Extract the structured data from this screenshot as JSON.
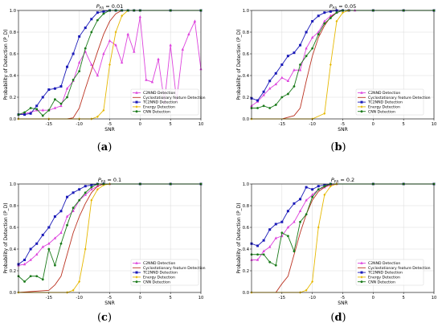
{
  "chart_data": [
    {
      "type": "line",
      "title": "P_FA = 0.01",
      "xlabel": "SNR",
      "ylabel": "Probability of Detection (P_D)",
      "xlim": [
        -20,
        10
      ],
      "ylim": [
        0,
        1
      ],
      "xticks": [
        "-15",
        "-10",
        "-5",
        "0",
        "5",
        "10"
      ],
      "yticks": [
        "0.0",
        "0.2",
        "0.4",
        "0.6",
        "0.8",
        "1.0"
      ],
      "grid": true,
      "legend": "lower-left",
      "caption": "a",
      "series": [
        {
          "name": "C2NND Detection",
          "color": "#dd44dd",
          "marker": "triangle",
          "x": [
            -20,
            -19,
            -18,
            -17,
            -16,
            -15,
            -14,
            -13,
            -12,
            -11,
            -10,
            -9,
            -8,
            -7,
            -6,
            -5,
            -4,
            -3,
            -2,
            -1,
            0,
            1,
            2,
            3,
            4,
            5,
            6,
            7,
            8,
            9,
            10
          ],
          "y": [
            0.04,
            0.05,
            0.06,
            0.08,
            0.08,
            0.08,
            0.1,
            0.12,
            0.28,
            0.35,
            0.52,
            0.62,
            0.5,
            0.4,
            0.6,
            0.72,
            0.68,
            0.52,
            0.78,
            0.62,
            0.94,
            0.36,
            0.34,
            0.55,
            0.15,
            0.68,
            0.17,
            0.64,
            0.78,
            0.9,
            0.46
          ]
        },
        {
          "name": "Cyclostationary feature Detection",
          "color": "#bb3322",
          "marker": "none",
          "x": [
            -20,
            -15,
            -12,
            -11,
            -10,
            -9,
            -8,
            -7,
            -6,
            -5,
            -4,
            -3,
            -2,
            -1,
            0,
            5,
            10
          ],
          "y": [
            0,
            0,
            0,
            0.01,
            0.1,
            0.28,
            0.45,
            0.62,
            0.78,
            0.9,
            0.97,
            1,
            1,
            1,
            1,
            1,
            1
          ]
        },
        {
          "name": "TC2NND Detection",
          "color": "#1a1ab8",
          "marker": "square",
          "x": [
            -20,
            -19,
            -18,
            -17,
            -16,
            -15,
            -14,
            -13,
            -12,
            -11,
            -10,
            -9,
            -8,
            -7,
            -6,
            -5,
            -4,
            -3,
            -2,
            -1,
            0,
            5,
            10
          ],
          "y": [
            0.04,
            0.04,
            0.05,
            0.12,
            0.2,
            0.27,
            0.28,
            0.3,
            0.48,
            0.6,
            0.76,
            0.84,
            0.92,
            0.98,
            0.99,
            1,
            1,
            1,
            1,
            1,
            1,
            1,
            1
          ]
        },
        {
          "name": "Energy Detection",
          "color": "#e6b800",
          "marker": "diamond",
          "x": [
            -20,
            -15,
            -10,
            -8,
            -7,
            -6,
            -5,
            -4,
            -3,
            -2,
            -1,
            0,
            5,
            10
          ],
          "y": [
            0,
            0,
            0,
            0,
            0.02,
            0.08,
            0.5,
            0.8,
            0.95,
            1,
            1,
            1,
            1,
            1
          ]
        },
        {
          "name": "CNN Detection",
          "color": "#1a7a1a",
          "marker": "circle",
          "x": [
            -20,
            -19,
            -18,
            -17,
            -16,
            -15,
            -14,
            -13,
            -12,
            -11,
            -10,
            -9,
            -8,
            -7,
            -6,
            -5,
            -4,
            -3,
            -2,
            -1,
            0,
            5,
            10
          ],
          "y": [
            0.04,
            0.06,
            0.1,
            0.09,
            0.03,
            0.08,
            0.18,
            0.14,
            0.2,
            0.36,
            0.44,
            0.65,
            0.8,
            0.91,
            0.97,
            1,
            1,
            1,
            1,
            1,
            1,
            1,
            1
          ]
        }
      ]
    },
    {
      "type": "line",
      "title": "P_FA = 0.05",
      "xlabel": "SNR",
      "ylabel": "Probability of Detection (P_D)",
      "xlim": [
        -20,
        10
      ],
      "ylim": [
        0,
        1
      ],
      "xticks": [
        "-15",
        "-10",
        "-5",
        "0",
        "5",
        "10"
      ],
      "yticks": [
        "0.0",
        "0.2",
        "0.4",
        "0.6",
        "0.8",
        "1.0"
      ],
      "grid": true,
      "legend": "lower-right",
      "caption": "b",
      "series": [
        {
          "name": "C2NND Detection",
          "color": "#dd44dd",
          "marker": "triangle",
          "x": [
            -20,
            -19,
            -18,
            -17,
            -16,
            -15,
            -14,
            -13,
            -12,
            -11,
            -10,
            -9,
            -8,
            -7,
            -6,
            -5,
            -4,
            -3,
            0,
            5,
            10
          ],
          "y": [
            0.12,
            0.16,
            0.22,
            0.28,
            0.32,
            0.38,
            0.35,
            0.45,
            0.45,
            0.65,
            0.75,
            0.8,
            0.9,
            0.95,
            0.98,
            1,
            1,
            1,
            1,
            1,
            1
          ]
        },
        {
          "name": "Cyclostationary feature Detection",
          "color": "#bb3322",
          "marker": "none",
          "x": [
            -20,
            -15,
            -13,
            -12,
            -11,
            -10,
            -9,
            -8,
            -7,
            -6,
            -5,
            -4,
            0,
            5,
            10
          ],
          "y": [
            0,
            0,
            0.03,
            0.1,
            0.35,
            0.58,
            0.75,
            0.86,
            0.94,
            0.98,
            1,
            1,
            1,
            1,
            1
          ]
        },
        {
          "name": "TC2NND Detection",
          "color": "#1a1ab8",
          "marker": "square",
          "x": [
            -20,
            -19,
            -18,
            -17,
            -16,
            -15,
            -14,
            -13,
            -12,
            -11,
            -10,
            -9,
            -8,
            -7,
            -6,
            -5,
            -4,
            0,
            5,
            10
          ],
          "y": [
            0.19,
            0.17,
            0.25,
            0.35,
            0.42,
            0.5,
            0.58,
            0.61,
            0.68,
            0.8,
            0.9,
            0.95,
            0.98,
            0.99,
            1,
            1,
            1,
            1,
            1,
            1
          ]
        },
        {
          "name": "Energy Detection",
          "color": "#e6b800",
          "marker": "diamond",
          "x": [
            -20,
            -10,
            -8,
            -7,
            -6,
            -5,
            -4,
            0,
            5,
            10
          ],
          "y": [
            0,
            0,
            0.05,
            0.5,
            0.9,
            0.98,
            1,
            1,
            1,
            1
          ]
        },
        {
          "name": "CNN Detection",
          "color": "#1a7a1a",
          "marker": "circle",
          "x": [
            -20,
            -19,
            -18,
            -17,
            -16,
            -15,
            -14,
            -13,
            -12,
            -11,
            -10,
            -9,
            -8,
            -7,
            -6,
            -5,
            0,
            5,
            10
          ],
          "y": [
            0.1,
            0.1,
            0.12,
            0.1,
            0.13,
            0.2,
            0.23,
            0.3,
            0.5,
            0.58,
            0.65,
            0.78,
            0.88,
            0.93,
            0.98,
            1,
            1,
            1,
            1
          ]
        }
      ]
    },
    {
      "type": "line",
      "title": "P_FA = 0.1",
      "xlabel": "SNR",
      "ylabel": "Probability of Detection (P_D)",
      "xlim": [
        -20,
        10
      ],
      "ylim": [
        0,
        1
      ],
      "xticks": [
        "-15",
        "-10",
        "-5",
        "0",
        "5",
        "10"
      ],
      "yticks": [
        "0.0",
        "0.2",
        "0.4",
        "0.6",
        "0.8",
        "1.0"
      ],
      "grid": true,
      "legend": "lower-right",
      "caption": "c",
      "series": [
        {
          "name": "C2NND Detection",
          "color": "#dd44dd",
          "marker": "triangle",
          "x": [
            -20,
            -19,
            -18,
            -17,
            -16,
            -15,
            -14,
            -13,
            -12,
            -11,
            -10,
            -9,
            -8,
            -7,
            -6,
            -5,
            0,
            5,
            10
          ],
          "y": [
            0.25,
            0.26,
            0.3,
            0.35,
            0.42,
            0.45,
            0.5,
            0.55,
            0.7,
            0.75,
            0.85,
            0.9,
            0.95,
            0.98,
            1,
            1,
            1,
            1,
            1
          ]
        },
        {
          "name": "Cyclostationary feature Detection",
          "color": "#bb3322",
          "marker": "none",
          "x": [
            -20,
            -15,
            -14,
            -13,
            -12,
            -11,
            -10,
            -9,
            -8,
            -7,
            -6,
            -5,
            0,
            5,
            10
          ],
          "y": [
            0,
            0.02,
            0.07,
            0.15,
            0.35,
            0.55,
            0.7,
            0.82,
            0.92,
            0.98,
            1,
            1,
            1,
            1,
            1
          ]
        },
        {
          "name": "TC2NND Detection",
          "color": "#1a1ab8",
          "marker": "square",
          "x": [
            -20,
            -19,
            -18,
            -17,
            -16,
            -15,
            -14,
            -13,
            -12,
            -11,
            -10,
            -9,
            -8,
            -7,
            -6,
            0,
            5,
            10
          ],
          "y": [
            0.26,
            0.3,
            0.4,
            0.45,
            0.53,
            0.6,
            0.7,
            0.75,
            0.88,
            0.92,
            0.95,
            0.98,
            0.99,
            1,
            1,
            1,
            1,
            1
          ]
        },
        {
          "name": "Energy Detection",
          "color": "#e6b800",
          "marker": "diamond",
          "x": [
            -20,
            -12,
            -11,
            -10,
            -9,
            -8,
            -7,
            -6,
            -5,
            0,
            5,
            10
          ],
          "y": [
            0,
            0,
            0.02,
            0.1,
            0.4,
            0.85,
            0.95,
            0.99,
            1,
            1,
            1,
            1
          ]
        },
        {
          "name": "CNN Detection",
          "color": "#1a7a1a",
          "marker": "circle",
          "x": [
            -20,
            -19,
            -18,
            -17,
            -16,
            -15,
            -14,
            -13,
            -12,
            -11,
            -10,
            -9,
            -8,
            -7,
            -6,
            0,
            5,
            10
          ],
          "y": [
            0.15,
            0.1,
            0.15,
            0.15,
            0.12,
            0.4,
            0.25,
            0.45,
            0.62,
            0.78,
            0.85,
            0.92,
            0.97,
            1,
            1,
            1,
            1,
            1
          ]
        }
      ]
    },
    {
      "type": "line",
      "title": "P_FA = 0.2",
      "xlabel": "SNR",
      "ylabel": "Probability of Detection (P_D)",
      "xlim": [
        -20,
        10
      ],
      "ylim": [
        0,
        1
      ],
      "xticks": [
        "-15",
        "-10",
        "-5",
        "0",
        "5",
        "10"
      ],
      "yticks": [
        "0.0",
        "0.2",
        "0.4",
        "0.6",
        "0.8",
        "1.0"
      ],
      "grid": true,
      "legend": "lower-right",
      "caption": "d",
      "series": [
        {
          "name": "C2NND Detection",
          "color": "#dd44dd",
          "marker": "triangle",
          "x": [
            -20,
            -19,
            -18,
            -17,
            -16,
            -15,
            -14,
            -13,
            -12,
            -11,
            -10,
            -9,
            -8,
            -7,
            -6,
            0,
            5,
            10
          ],
          "y": [
            0.3,
            0.3,
            0.38,
            0.42,
            0.5,
            0.52,
            0.6,
            0.65,
            0.75,
            0.85,
            0.9,
            0.95,
            0.97,
            0.99,
            1,
            1,
            1,
            1
          ]
        },
        {
          "name": "Cyclostationary feature Detection",
          "color": "#bb3322",
          "marker": "none",
          "x": [
            -20,
            -16,
            -15,
            -14,
            -13,
            -12,
            -11,
            -10,
            -9,
            -8,
            -7,
            -6,
            0,
            5,
            10
          ],
          "y": [
            0,
            0,
            0.08,
            0.15,
            0.35,
            0.55,
            0.72,
            0.85,
            0.93,
            0.97,
            1,
            1,
            1,
            1,
            1
          ]
        },
        {
          "name": "TC2NND Detection",
          "color": "#1a1ab8",
          "marker": "square",
          "x": [
            -20,
            -19,
            -18,
            -17,
            -16,
            -15,
            -14,
            -13,
            -12,
            -11,
            -10,
            -9,
            -8,
            -7,
            0,
            5,
            10
          ],
          "y": [
            0.45,
            0.43,
            0.48,
            0.58,
            0.63,
            0.65,
            0.75,
            0.82,
            0.86,
            0.97,
            0.95,
            0.98,
            0.99,
            1,
            1,
            1,
            1
          ]
        },
        {
          "name": "Energy Detection",
          "color": "#e6b800",
          "marker": "diamond",
          "x": [
            -20,
            -12,
            -11,
            -10,
            -9,
            -8,
            -7,
            -6,
            0,
            5,
            10
          ],
          "y": [
            0,
            0,
            0.02,
            0.1,
            0.6,
            0.9,
            0.98,
            1,
            1,
            1,
            1
          ]
        },
        {
          "name": "CNN Detection",
          "color": "#1a7a1a",
          "marker": "circle",
          "x": [
            -20,
            -19,
            -18,
            -17,
            -16,
            -15,
            -14,
            -13,
            -12,
            -11,
            -10,
            -9,
            -8,
            -7,
            0,
            5,
            10
          ],
          "y": [
            0.35,
            0.35,
            0.35,
            0.28,
            0.25,
            0.55,
            0.52,
            0.38,
            0.65,
            0.72,
            0.88,
            0.95,
            0.98,
            1,
            1,
            1,
            1
          ]
        }
      ]
    }
  ]
}
